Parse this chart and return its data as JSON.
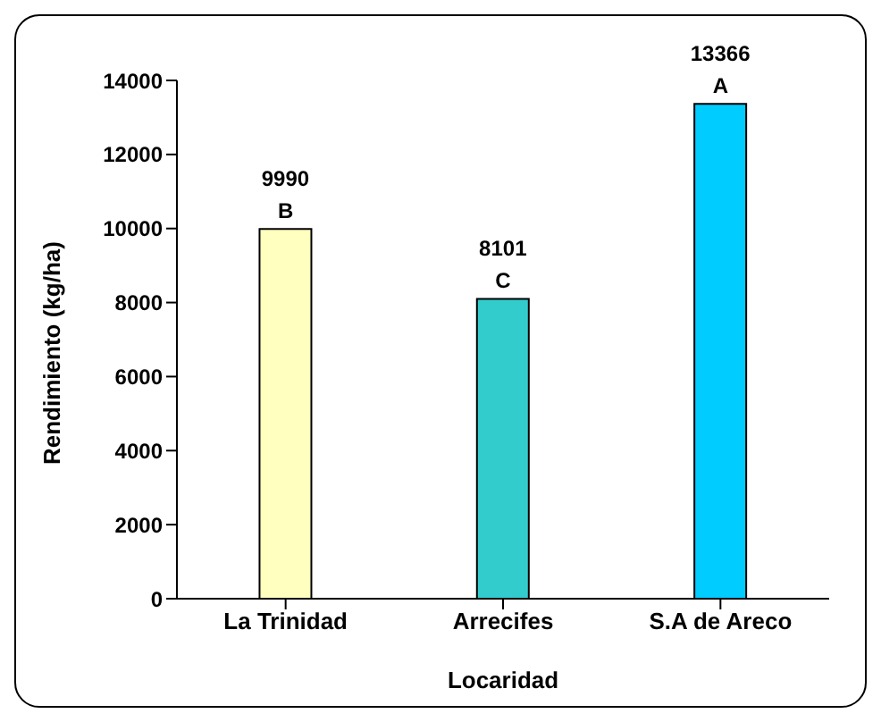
{
  "chart_data": {
    "type": "bar",
    "xlabel": "Locaridad",
    "ylabel": "Rendimiento (kg/ha)",
    "categories": [
      "La Trinidad",
      "Arrecifes",
      "S.A de Areco"
    ],
    "values": [
      9990,
      8101,
      13366
    ],
    "colors": [
      "#ffffc0",
      "#33cccc",
      "#00ccff"
    ],
    "ylim": [
      0,
      14000
    ],
    "yticks": [
      0,
      2000,
      4000,
      6000,
      8000,
      10000,
      12000,
      14000
    ],
    "data_labels": true,
    "annotations": [
      {
        "text": "B",
        "x": "La Trinidad",
        "y": 9990
      },
      {
        "text": "C",
        "x": "Arrecifes",
        "y": 8101
      },
      {
        "text": "A",
        "x": "S.A de Areco",
        "y": 13366
      }
    ]
  }
}
